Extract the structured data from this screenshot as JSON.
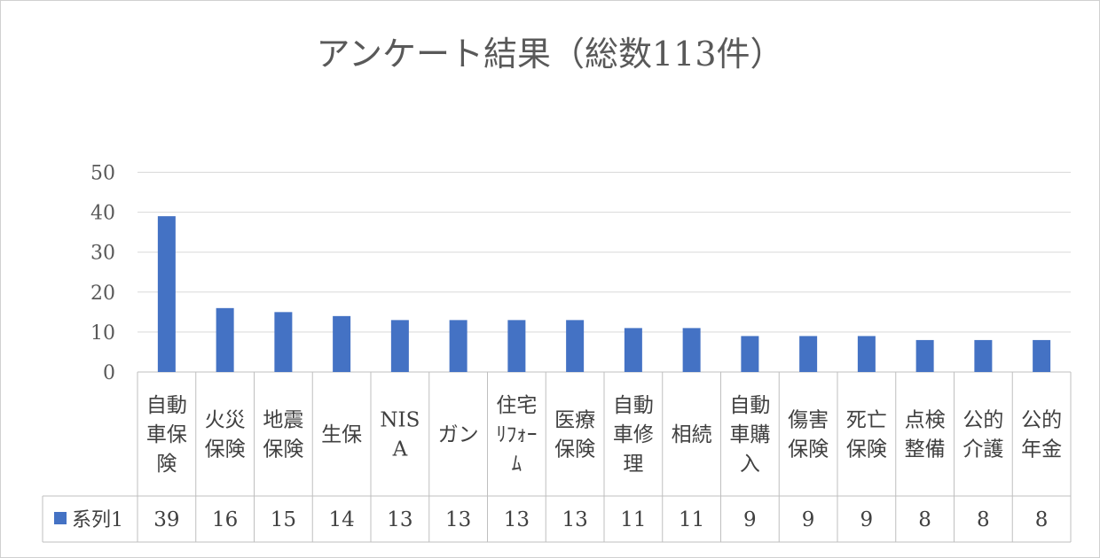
{
  "chart_data": {
    "type": "bar",
    "title": "アンケート結果（総数113件）",
    "categories": [
      [
        "自動",
        "車保",
        "険"
      ],
      [
        "火災",
        "保険"
      ],
      [
        "地震",
        "保険"
      ],
      [
        "生保"
      ],
      [
        "NIS",
        "A"
      ],
      [
        "ガン"
      ],
      [
        "住宅",
        "ﾘﾌｫｰ",
        "ﾑ"
      ],
      [
        "医療",
        "保険"
      ],
      [
        "自動",
        "車修",
        "理"
      ],
      [
        "相続"
      ],
      [
        "自動",
        "車購",
        "入"
      ],
      [
        "傷害",
        "保険"
      ],
      [
        "死亡",
        "保険"
      ],
      [
        "点検",
        "整備"
      ],
      [
        "公的",
        "介護"
      ],
      [
        "公的",
        "年金"
      ]
    ],
    "series": [
      {
        "name": "系列1",
        "values": [
          39,
          16,
          15,
          14,
          13,
          13,
          13,
          13,
          11,
          11,
          9,
          9,
          9,
          8,
          8,
          8
        ],
        "color": "#4472c4"
      }
    ],
    "ylim": [
      0,
      50
    ],
    "yticks": [
      0,
      10,
      20,
      30,
      40,
      50
    ],
    "grid": true,
    "legend": "data-table",
    "gridline_color": "#d9d9d9",
    "table_border_color": "#bfbfbf"
  }
}
